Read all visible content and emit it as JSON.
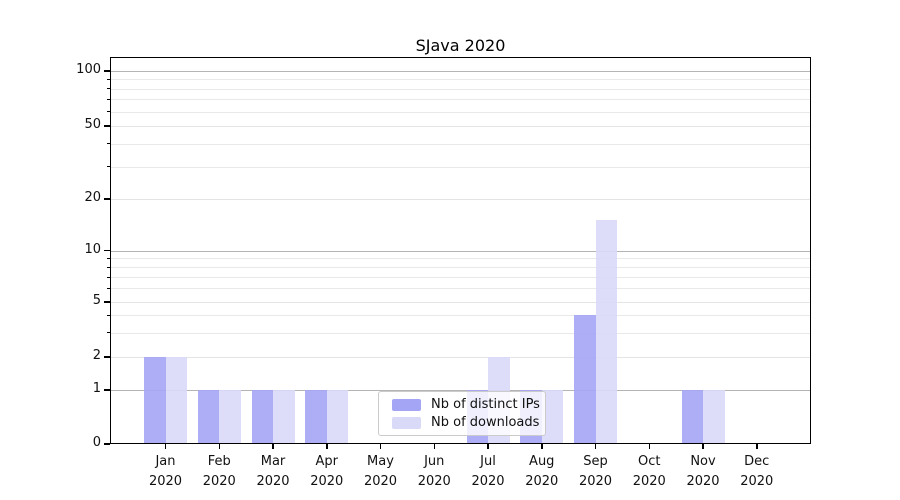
{
  "chart_data": {
    "type": "bar",
    "title": "SJava 2020",
    "months": [
      "Jan",
      "Feb",
      "Mar",
      "Apr",
      "May",
      "Jun",
      "Jul",
      "Aug",
      "Sep",
      "Oct",
      "Nov",
      "Dec"
    ],
    "year_label": "2020",
    "series": [
      {
        "name": "Nb of distinct IPs",
        "color": "#a5a5f6",
        "values": [
          2,
          1,
          1,
          1,
          0,
          0,
          1,
          1,
          4,
          0,
          1,
          0
        ]
      },
      {
        "name": "Nb of downloads",
        "color": "#d9d9f8",
        "values": [
          2,
          1,
          1,
          1,
          0,
          0,
          2,
          1,
          15,
          0,
          1,
          0
        ]
      }
    ],
    "y_ticks": [
      0,
      1,
      2,
      5,
      10,
      20,
      50,
      100
    ],
    "y_minor_ticks": [
      3,
      4,
      6,
      7,
      8,
      9,
      30,
      40,
      60,
      70,
      80,
      90
    ],
    "y_scale": "log (0 pinned at baseline)",
    "ylim": [
      0,
      120
    ],
    "grid": true,
    "legend_position": "inside lower-center"
  },
  "colors": {
    "grid_major": "#b4b4b4",
    "grid_minor": "#e9e9e9",
    "axis": "#000000",
    "text": "#111111",
    "legend_border": "#cbcbcb"
  }
}
